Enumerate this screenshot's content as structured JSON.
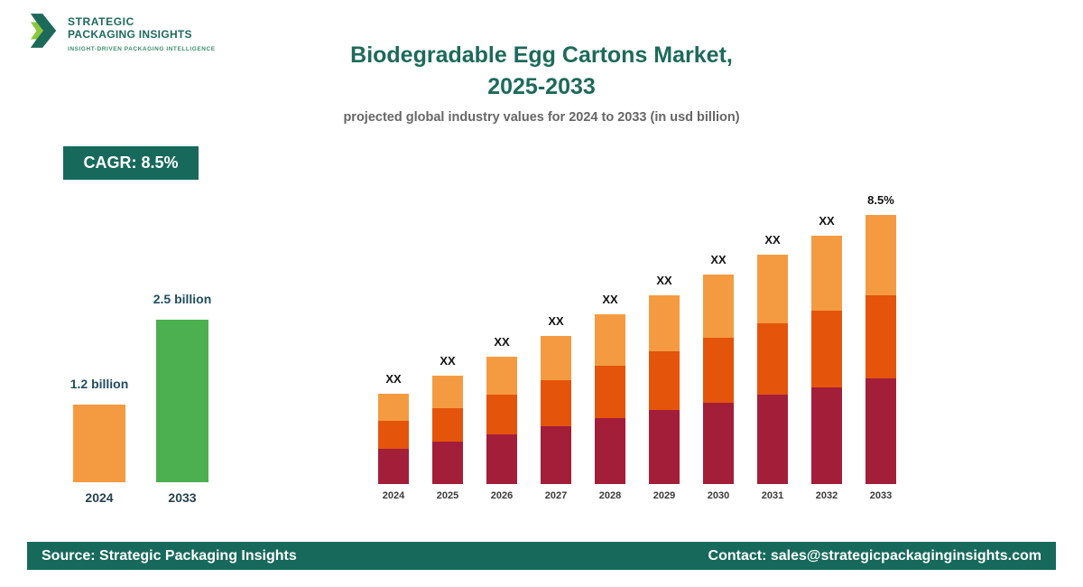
{
  "logo": {
    "line1": "STRATEGIC",
    "line2": "PACKAGING INSIGHTS",
    "tagline": "INSIGHT-DRIVEN PACKAGING INTELLIGENCE"
  },
  "header": {
    "title_line1": "Biodegradable Egg Cartons Market,",
    "title_line2": "2025-2033",
    "subtitle": "projected global industry values for 2024 to 2033 (in usd billion)"
  },
  "cagr_badge": "CAGR: 8.5%",
  "colors": {
    "theme_dark_green": "#17695B",
    "title_green": "#1D6A5A",
    "maroon": "#A31E39",
    "orange_red": "#E4540A",
    "light_orange": "#F49B42",
    "green_bar": "#4CAF50"
  },
  "chart_data": [
    {
      "name": "projection-stacked-bars",
      "type": "bar",
      "stacked": true,
      "title": "Biodegradable Egg Cartons Market, 2025-2033",
      "subtitle": "projected global industry values for 2024 to 2033 (in usd billion)",
      "unit": "usd billion (actual bar values shown only as placeholder labels)",
      "categories": [
        "2024",
        "2025",
        "2026",
        "2027",
        "2028",
        "2029",
        "2030",
        "2031",
        "2032",
        "2033"
      ],
      "bar_labels": [
        "XX",
        "XX",
        "XX",
        "XX",
        "XX",
        "XX",
        "XX",
        "XX",
        "XX",
        "8.5%"
      ],
      "cagr_label": "8.5%",
      "grid": false,
      "legend": "none",
      "value_note": "segment values are relative height units read from the illustrative chart",
      "series": [
        {
          "name": "segment-bottom",
          "color": "#A31E39",
          "values": [
            39,
            47,
            55,
            64,
            73,
            82,
            90,
            99,
            107,
            117
          ]
        },
        {
          "name": "segment-middle",
          "color": "#E4540A",
          "values": [
            31,
            37,
            44,
            51,
            58,
            65,
            72,
            79,
            85,
            92
          ]
        },
        {
          "name": "segment-top",
          "color": "#F49B42",
          "values": [
            30,
            36,
            42,
            49,
            57,
            62,
            70,
            76,
            83,
            89
          ]
        }
      ]
    },
    {
      "name": "growth-comparison",
      "type": "bar",
      "unit": "usd billion",
      "categories": [
        "2024",
        "2033"
      ],
      "values": [
        1.2,
        2.5
      ],
      "value_labels": [
        "1.2 billion",
        "2.5 billion"
      ],
      "colors": [
        "#F49B42",
        "#4CAF50"
      ],
      "grid": false,
      "legend": "none"
    }
  ],
  "footer": {
    "source": "Source: Strategic Packaging Insights",
    "contact": "Contact: sales@strategicpackaginginsights.com"
  }
}
